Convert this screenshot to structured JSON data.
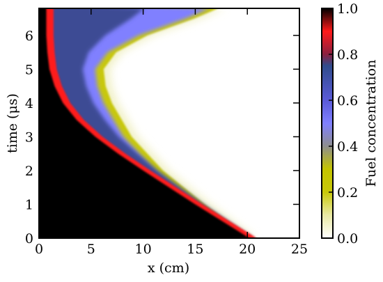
{
  "chart_data": {
    "type": "heatmap",
    "xlabel": "x (cm)",
    "ylabel": "time (μs)",
    "xlim": [
      0,
      25
    ],
    "ylim": [
      0,
      6.8
    ],
    "xticks": [
      "0",
      "5",
      "10",
      "15",
      "20",
      "25"
    ],
    "xtick_values": [
      0,
      5,
      10,
      15,
      20,
      25
    ],
    "yticks": [
      "0",
      "1",
      "2",
      "3",
      "4",
      "5",
      "6"
    ],
    "ytick_values": [
      0,
      1,
      2,
      3,
      4,
      5,
      6
    ],
    "grid": false,
    "colorbar": {
      "label": "Fuel concentration",
      "range": [
        0.0,
        1.0
      ],
      "ticks": [
        "0.0",
        "0.2",
        "0.4",
        "0.6",
        "0.8",
        "1.0"
      ],
      "tick_values": [
        0.0,
        0.2,
        0.4,
        0.6,
        0.8,
        1.0
      ],
      "colormap": [
        {
          "v": 0.0,
          "color": "#ffffff"
        },
        {
          "v": 0.1,
          "color": "#e9e9a4"
        },
        {
          "v": 0.2,
          "color": "#c8c80a"
        },
        {
          "v": 0.3,
          "color": "#c4c400"
        },
        {
          "v": 0.4,
          "color": "#8e8e8e"
        },
        {
          "v": 0.5,
          "color": "#8080ff"
        },
        {
          "v": 0.6,
          "color": "#5a5ad8"
        },
        {
          "v": 0.75,
          "color": "#304c8c"
        },
        {
          "v": 0.8,
          "color": "#8a2040"
        },
        {
          "v": 0.9,
          "color": "#ff1a1a"
        },
        {
          "v": 1.0,
          "color": "#000000"
        }
      ]
    },
    "regions": {
      "burned_side": {
        "value": 1.0,
        "color": "#000000"
      },
      "unburned_side": {
        "value": 0.0,
        "color": "#ffffff"
      },
      "front_color": "#ff1a1a"
    },
    "front_trajectory": {
      "t": [
        0.0,
        0.5,
        1.0,
        1.5,
        2.0,
        2.5,
        3.0,
        3.5,
        4.0,
        4.5,
        5.0,
        5.5,
        6.0,
        6.5,
        6.8
      ],
      "x": [
        20.2,
        17.6,
        15.0,
        12.5,
        10.0,
        7.6,
        5.4,
        3.6,
        2.3,
        1.5,
        1.0,
        0.8,
        0.7,
        0.7,
        0.7
      ]
    },
    "mixing_outer_edge": {
      "t": [
        0.0,
        1.0,
        2.0,
        3.0,
        4.0,
        4.5,
        5.0,
        5.5,
        6.0,
        6.5,
        6.8
      ],
      "x": [
        20.8,
        16.5,
        12.5,
        9.5,
        7.6,
        7.0,
        6.8,
        8.0,
        11.0,
        15.5,
        17.8
      ]
    }
  }
}
